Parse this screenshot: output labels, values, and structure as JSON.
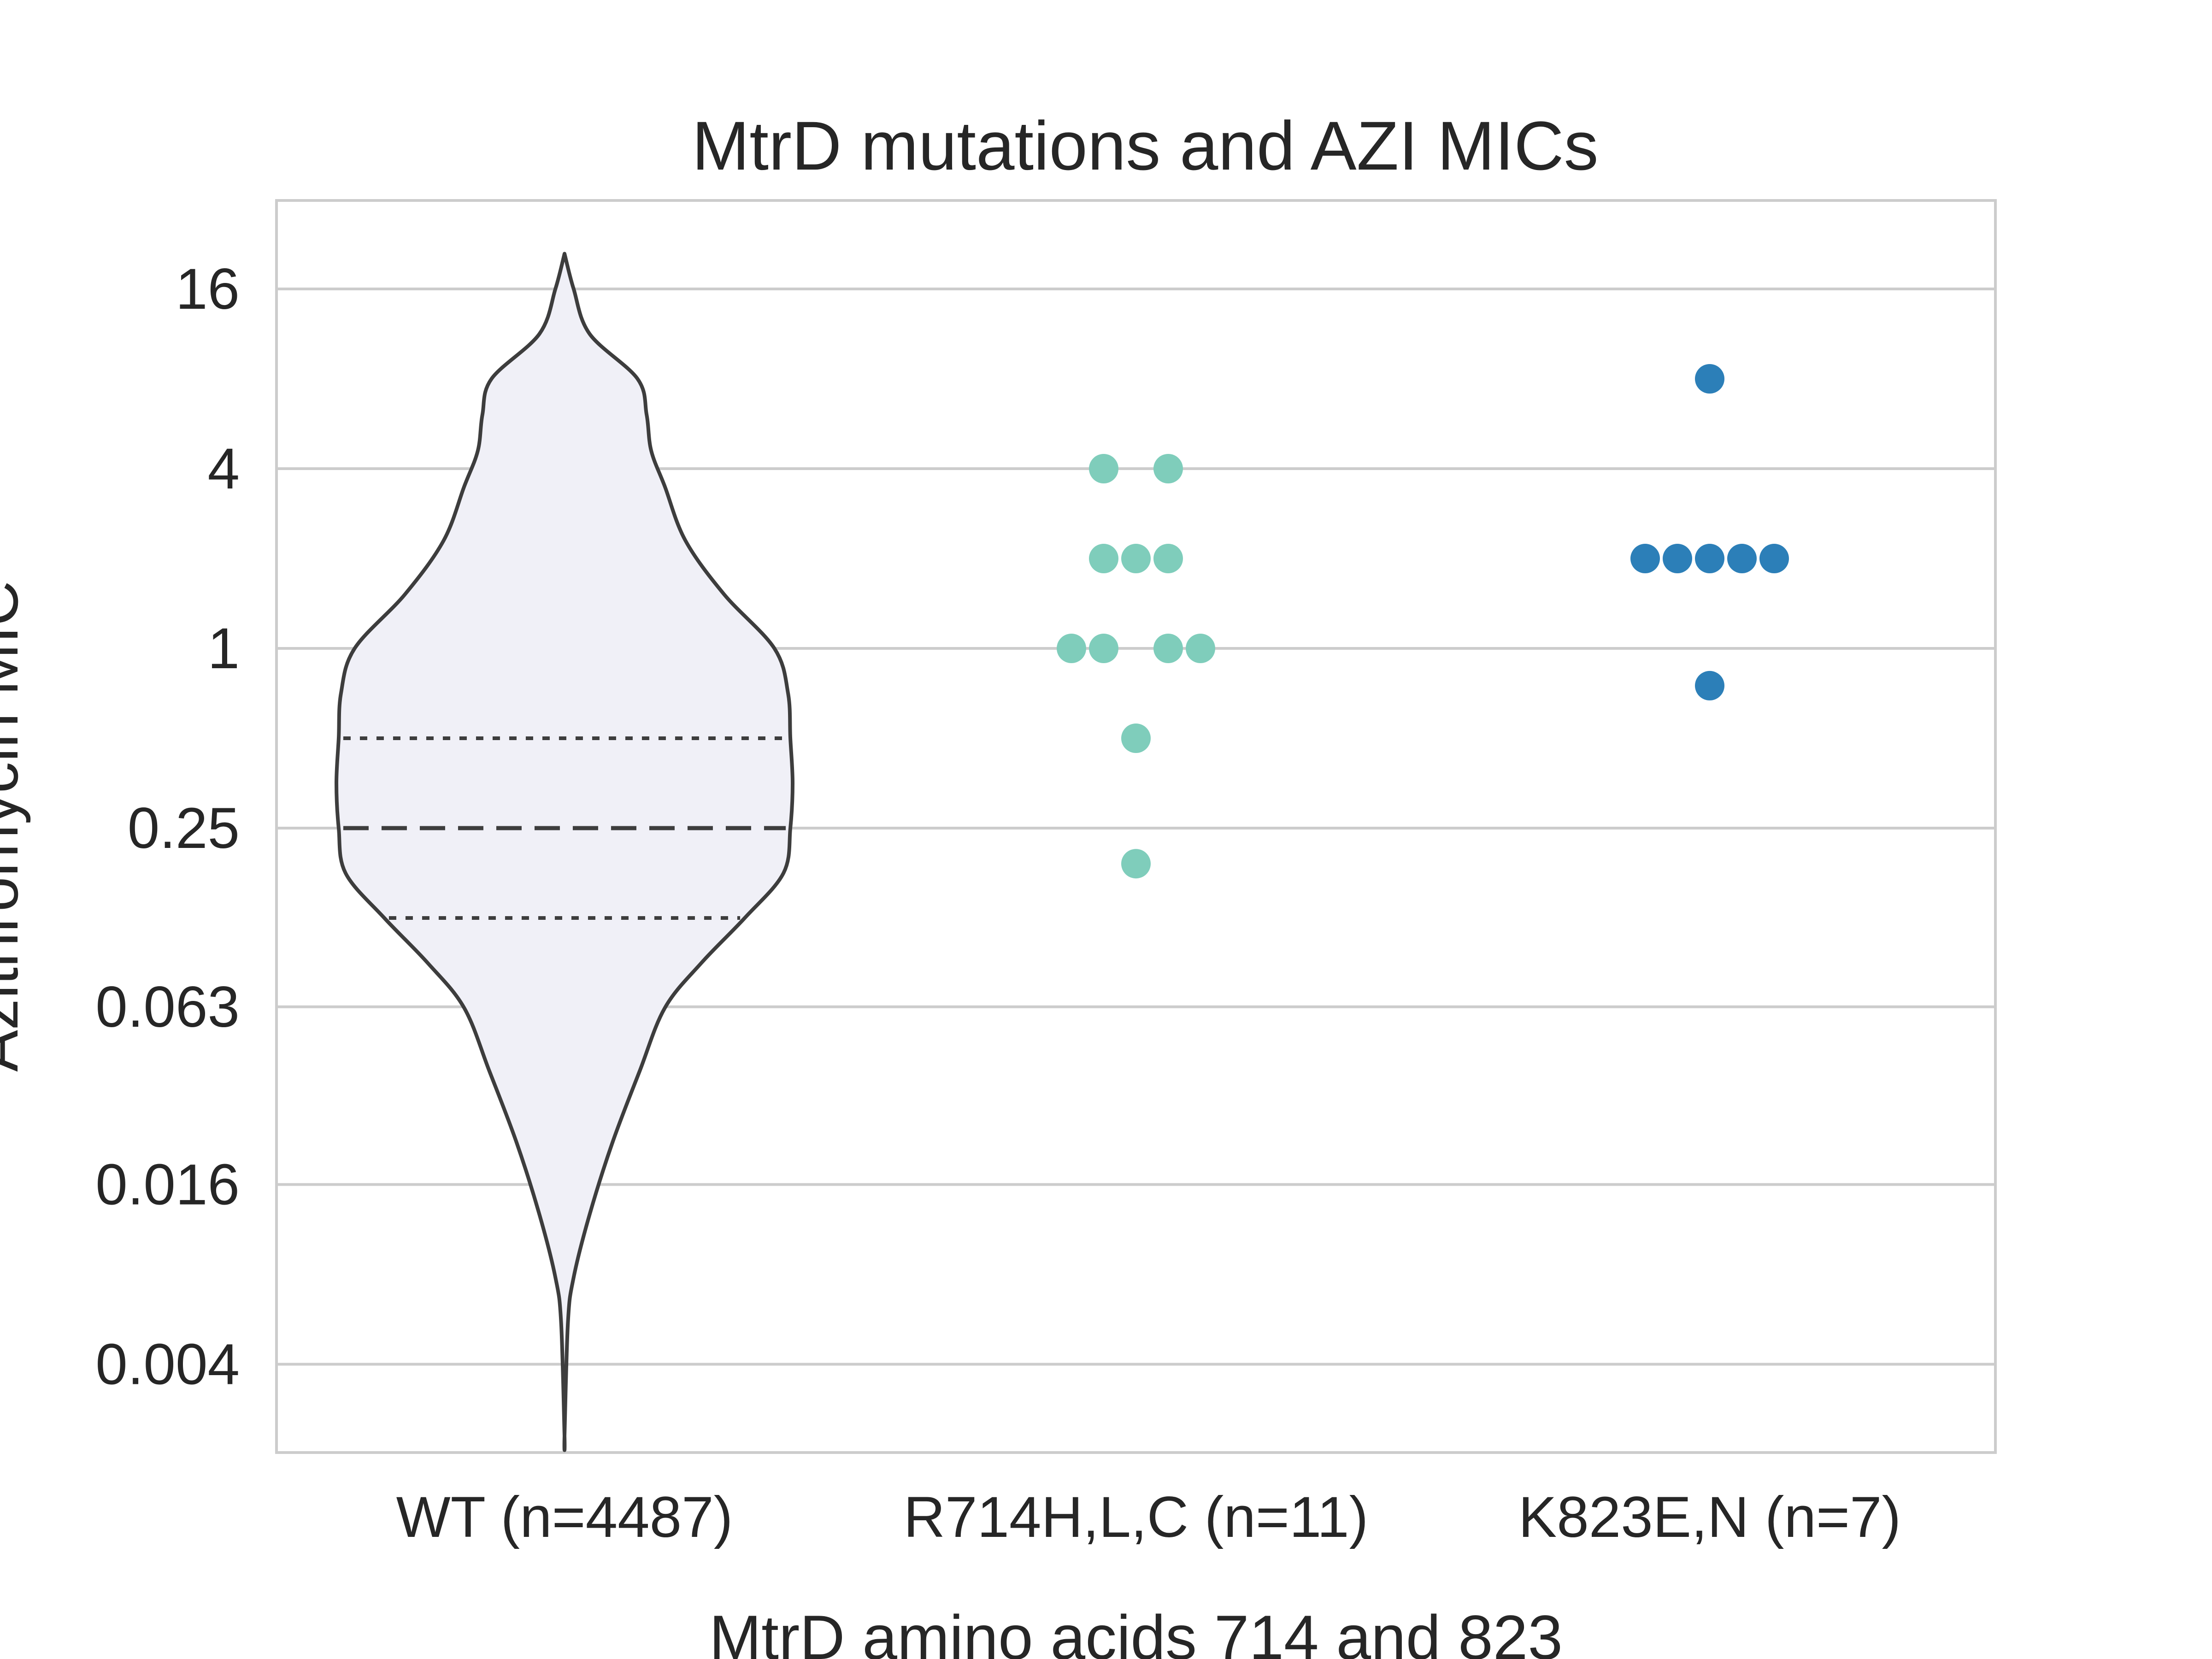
{
  "chart_data": {
    "type": "violin",
    "title": "MtrD mutations and AZI MICs",
    "xlabel": "MtrD amino acids 714 and 823",
    "ylabel": "Azithromycin MIC",
    "yscale": "log2",
    "ylim": [
      0.0024,
      24
    ],
    "yticks": [
      0.004,
      0.016,
      0.063,
      0.25,
      1,
      4,
      16
    ],
    "ytick_labels": [
      "0.004",
      "0.016",
      "0.063",
      "0.25",
      "1",
      "4",
      "16"
    ],
    "grid": "horizontal",
    "categories": [
      "WT (n=4487)",
      "R714H,L,C (n=11)",
      "K823E,N (n=7)"
    ],
    "violin": {
      "category": "WT (n=4487)",
      "color": "#f0f0f7",
      "edge_color": "#3d3d3d",
      "range": [
        0.0023,
        21
      ],
      "quartiles": [
        0.125,
        0.25,
        0.5
      ]
    },
    "series": [
      {
        "category": "R714H,L,C (n=11)",
        "color": "#7fcdbb",
        "values": [
          4,
          4,
          2,
          2,
          2,
          1,
          1,
          1,
          1,
          0.5,
          0.19
        ]
      },
      {
        "category": "K823E,N (n=7)",
        "color": "#2c7fb8",
        "values": [
          8,
          2,
          2,
          2,
          2,
          2,
          0.75
        ]
      }
    ]
  }
}
